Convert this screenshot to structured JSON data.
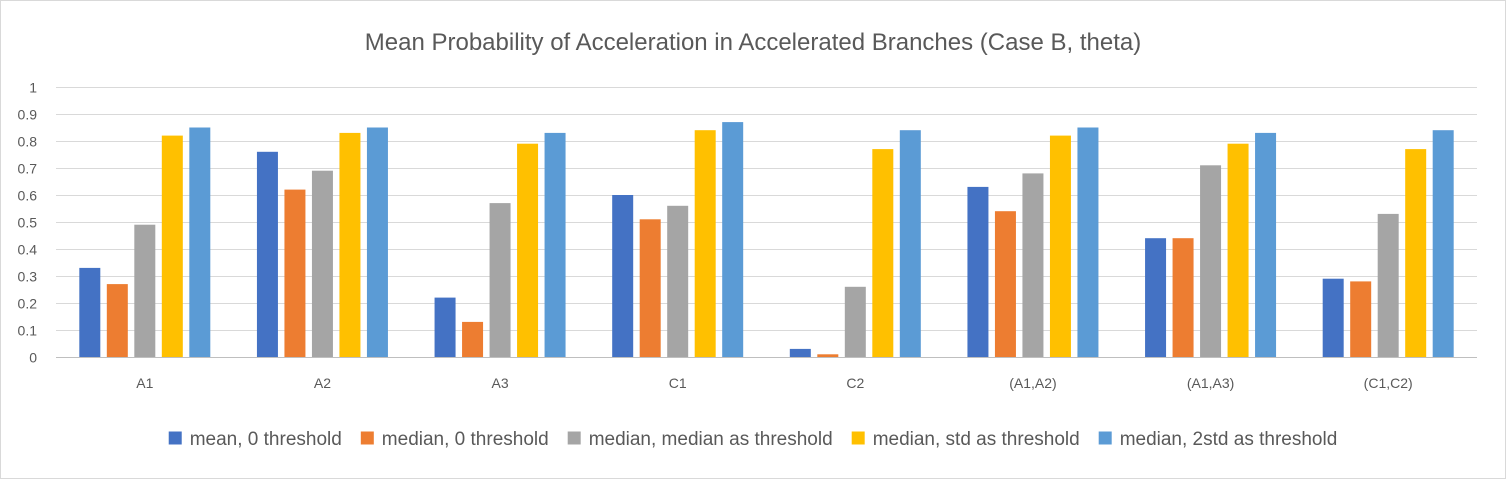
{
  "chart_data": {
    "type": "bar",
    "title": "Mean Probability of Acceleration in Accelerated Branches (Case B, theta)",
    "xlabel": "",
    "ylabel": "",
    "ylim": [
      0,
      1
    ],
    "yticks": [
      0,
      0.1,
      0.2,
      0.3,
      0.4,
      0.5,
      0.6,
      0.7,
      0.8,
      0.9,
      1
    ],
    "ytick_labels": [
      "0",
      "0.1",
      "0.2",
      "0.3",
      "0.4",
      "0.5",
      "0.6",
      "0.7",
      "0.8",
      "0.9",
      "1"
    ],
    "grid": true,
    "legend_position": "bottom",
    "categories": [
      "A1",
      "A2",
      "A3",
      "C1",
      "C2",
      "(A1,A2)",
      "(A1,A3)",
      "(C1,C2)"
    ],
    "series": [
      {
        "name": "mean, 0 threshold",
        "color": "#4472C4",
        "values": [
          0.33,
          0.76,
          0.22,
          0.6,
          0.03,
          0.63,
          0.44,
          0.29
        ]
      },
      {
        "name": "median, 0 threshold",
        "color": "#ED7D31",
        "values": [
          0.27,
          0.62,
          0.13,
          0.51,
          0.01,
          0.54,
          0.44,
          0.28
        ]
      },
      {
        "name": "median, median as threshold",
        "color": "#A5A5A5",
        "values": [
          0.49,
          0.69,
          0.57,
          0.56,
          0.26,
          0.68,
          0.71,
          0.53
        ]
      },
      {
        "name": "median, std as threshold",
        "color": "#FFC000",
        "values": [
          0.82,
          0.83,
          0.79,
          0.84,
          0.77,
          0.82,
          0.79,
          0.77
        ]
      },
      {
        "name": "median, 2std as threshold",
        "color": "#5B9BD5",
        "values": [
          0.85,
          0.85,
          0.83,
          0.87,
          0.84,
          0.85,
          0.83,
          0.84
        ]
      }
    ]
  }
}
